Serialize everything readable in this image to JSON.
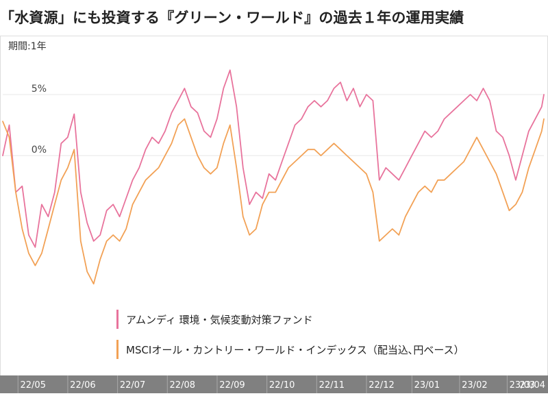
{
  "title": "「水資源」にも投資する『グリーン・ワールド』の過去１年の運用実績",
  "colors": {
    "fund": "#e8739c",
    "index": "#f2a155",
    "axis_band": "#808080",
    "axis_text": "#ffffff",
    "grid": "#e8e8e8"
  },
  "chart_data": {
    "type": "line",
    "period_label": "期間:1年",
    "y_unit": "%",
    "ylim": [
      -18,
      8.7
    ],
    "y_ticks": [
      {
        "value": 0,
        "label": "0%"
      },
      {
        "value": 5,
        "label": "5%"
      }
    ],
    "x_range": [
      0,
      250
    ],
    "x_ticks": [
      {
        "label": "22/05",
        "x": 14
      },
      {
        "label": "22/06",
        "x": 37
      },
      {
        "label": "22/07",
        "x": 60
      },
      {
        "label": "22/08",
        "x": 83
      },
      {
        "label": "22/09",
        "x": 106
      },
      {
        "label": "22/10",
        "x": 129
      },
      {
        "label": "22/11",
        "x": 152
      },
      {
        "label": "22/12",
        "x": 175
      },
      {
        "label": "23/01",
        "x": 196
      },
      {
        "label": "23/02",
        "x": 218
      },
      {
        "label": "23/03",
        "x": 240
      },
      {
        "label": "23/04",
        "x": 262
      }
    ],
    "series": [
      {
        "name": "アムンディ 環境・気候変動対策ファンド",
        "key": "fund",
        "points": [
          [
            0,
            0.0
          ],
          [
            3,
            2.5
          ],
          [
            6,
            -3.0
          ],
          [
            9,
            -2.5
          ],
          [
            12,
            -6.5
          ],
          [
            15,
            -7.5
          ],
          [
            18,
            -4.0
          ],
          [
            21,
            -5.0
          ],
          [
            24,
            -3.0
          ],
          [
            27,
            1.0
          ],
          [
            30,
            1.5
          ],
          [
            33,
            3.4
          ],
          [
            36,
            -3.0
          ],
          [
            39,
            -5.5
          ],
          [
            42,
            -7.0
          ],
          [
            45,
            -6.5
          ],
          [
            48,
            -4.5
          ],
          [
            51,
            -4.0
          ],
          [
            54,
            -5.0
          ],
          [
            57,
            -3.5
          ],
          [
            60,
            -2.0
          ],
          [
            63,
            -1.0
          ],
          [
            66,
            0.5
          ],
          [
            69,
            1.5
          ],
          [
            72,
            1.0
          ],
          [
            75,
            2.0
          ],
          [
            78,
            3.5
          ],
          [
            81,
            4.5
          ],
          [
            84,
            5.5
          ],
          [
            87,
            4.0
          ],
          [
            90,
            3.5
          ],
          [
            93,
            2.0
          ],
          [
            96,
            1.5
          ],
          [
            99,
            3.0
          ],
          [
            102,
            5.5
          ],
          [
            105,
            7.0
          ],
          [
            108,
            4.0
          ],
          [
            111,
            -1.0
          ],
          [
            114,
            -4.0
          ],
          [
            117,
            -3.0
          ],
          [
            120,
            -3.5
          ],
          [
            123,
            -1.5
          ],
          [
            126,
            -2.0
          ],
          [
            129,
            -0.5
          ],
          [
            132,
            1.0
          ],
          [
            135,
            2.5
          ],
          [
            138,
            3.0
          ],
          [
            141,
            4.0
          ],
          [
            144,
            4.5
          ],
          [
            147,
            4.0
          ],
          [
            150,
            4.5
          ],
          [
            153,
            5.5
          ],
          [
            156,
            6.0
          ],
          [
            159,
            4.5
          ],
          [
            162,
            5.5
          ],
          [
            165,
            4.0
          ],
          [
            168,
            5.0
          ],
          [
            171,
            4.5
          ],
          [
            174,
            -2.0
          ],
          [
            177,
            -1.0
          ],
          [
            180,
            -1.5
          ],
          [
            183,
            -2.0
          ],
          [
            186,
            -1.0
          ],
          [
            189,
            0.0
          ],
          [
            192,
            1.0
          ],
          [
            195,
            2.0
          ],
          [
            198,
            1.5
          ],
          [
            201,
            2.0
          ],
          [
            204,
            3.0
          ],
          [
            207,
            3.5
          ],
          [
            210,
            4.0
          ],
          [
            213,
            4.5
          ],
          [
            216,
            5.0
          ],
          [
            219,
            4.5
          ],
          [
            222,
            5.5
          ],
          [
            225,
            4.5
          ],
          [
            228,
            2.0
          ],
          [
            231,
            1.5
          ],
          [
            234,
            0.0
          ],
          [
            237,
            -2.0
          ],
          [
            240,
            0.0
          ],
          [
            243,
            2.0
          ],
          [
            246,
            3.0
          ],
          [
            249,
            4.0
          ],
          [
            250,
            5.0
          ]
        ]
      },
      {
        "name": "MSCIオール・カントリー・ワールド・インデックス（配当込､円ベース）",
        "key": "index",
        "points": [
          [
            0,
            2.8
          ],
          [
            3,
            1.5
          ],
          [
            6,
            -3.0
          ],
          [
            9,
            -6.0
          ],
          [
            12,
            -8.0
          ],
          [
            15,
            -9.0
          ],
          [
            18,
            -8.0
          ],
          [
            21,
            -6.0
          ],
          [
            24,
            -4.0
          ],
          [
            27,
            -2.0
          ],
          [
            30,
            -1.0
          ],
          [
            33,
            0.5
          ],
          [
            36,
            -7.0
          ],
          [
            39,
            -9.5
          ],
          [
            42,
            -10.5
          ],
          [
            45,
            -8.5
          ],
          [
            48,
            -7.0
          ],
          [
            51,
            -6.5
          ],
          [
            54,
            -7.0
          ],
          [
            57,
            -6.0
          ],
          [
            60,
            -4.0
          ],
          [
            63,
            -3.0
          ],
          [
            66,
            -2.0
          ],
          [
            69,
            -1.5
          ],
          [
            72,
            -1.0
          ],
          [
            75,
            0.0
          ],
          [
            78,
            1.0
          ],
          [
            81,
            2.5
          ],
          [
            84,
            3.0
          ],
          [
            87,
            1.5
          ],
          [
            90,
            0.0
          ],
          [
            93,
            -1.0
          ],
          [
            96,
            -1.5
          ],
          [
            99,
            -1.0
          ],
          [
            102,
            1.0
          ],
          [
            105,
            2.5
          ],
          [
            108,
            -1.0
          ],
          [
            111,
            -5.0
          ],
          [
            114,
            -6.5
          ],
          [
            117,
            -6.0
          ],
          [
            120,
            -4.0
          ],
          [
            123,
            -3.0
          ],
          [
            126,
            -3.0
          ],
          [
            129,
            -2.0
          ],
          [
            132,
            -1.0
          ],
          [
            135,
            -0.5
          ],
          [
            138,
            0.0
          ],
          [
            141,
            0.5
          ],
          [
            144,
            0.5
          ],
          [
            147,
            0.0
          ],
          [
            150,
            0.5
          ],
          [
            153,
            1.0
          ],
          [
            156,
            0.5
          ],
          [
            159,
            0.0
          ],
          [
            162,
            -0.5
          ],
          [
            165,
            -1.0
          ],
          [
            168,
            -1.5
          ],
          [
            171,
            -3.0
          ],
          [
            174,
            -7.0
          ],
          [
            177,
            -6.5
          ],
          [
            180,
            -6.0
          ],
          [
            183,
            -6.5
          ],
          [
            186,
            -5.0
          ],
          [
            189,
            -4.0
          ],
          [
            192,
            -3.0
          ],
          [
            195,
            -2.5
          ],
          [
            198,
            -3.0
          ],
          [
            201,
            -2.0
          ],
          [
            204,
            -2.0
          ],
          [
            207,
            -1.5
          ],
          [
            210,
            -1.0
          ],
          [
            213,
            -0.5
          ],
          [
            216,
            0.5
          ],
          [
            219,
            1.5
          ],
          [
            222,
            0.5
          ],
          [
            225,
            -0.5
          ],
          [
            228,
            -1.5
          ],
          [
            231,
            -3.0
          ],
          [
            234,
            -4.5
          ],
          [
            237,
            -4.0
          ],
          [
            240,
            -3.0
          ],
          [
            243,
            -1.0
          ],
          [
            246,
            0.5
          ],
          [
            249,
            2.0
          ],
          [
            250,
            3.0
          ]
        ]
      }
    ]
  }
}
